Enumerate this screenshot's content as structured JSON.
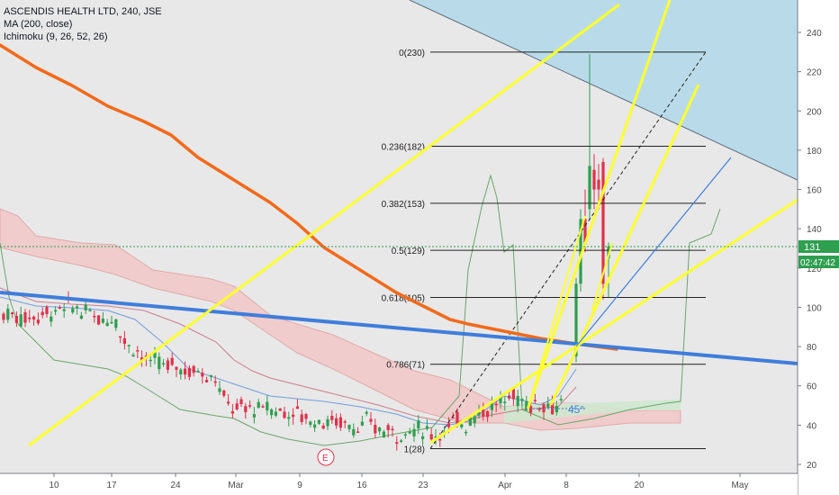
{
  "legend": {
    "title": "ASCENDIS HEALTH LTD, 240, JSE",
    "ma": "MA (200, close)",
    "ichimoku": "Ichimoku (9, 26, 52, 26)"
  },
  "price_axis": {
    "ticks": [
      "240",
      "220",
      "200",
      "180",
      "160",
      "140",
      "120",
      "100",
      "80",
      "60",
      "40",
      "20"
    ],
    "last_price_label": "131",
    "countdown_label": "02:47:42"
  },
  "time_axis": {
    "ticks": [
      "10",
      "17",
      "24",
      "Mar",
      "9",
      "16",
      "23",
      "Apr",
      "8",
      "20",
      "May"
    ]
  },
  "fib_levels": [
    {
      "label": "0(230)",
      "value": 230
    },
    {
      "label": "0.236(182)",
      "value": 182
    },
    {
      "label": "0.382(153)",
      "value": 153
    },
    {
      "label": "0.5(129)",
      "value": 129
    },
    {
      "label": "0.618(105)",
      "value": 105
    },
    {
      "label": "0.786(71)",
      "value": 71
    },
    {
      "label": "1(28)",
      "value": 28
    }
  ],
  "annotations": {
    "angle_label": "45°",
    "earnings_marker": "E"
  },
  "colors": {
    "background": "#e8e8e8",
    "up_candle": "#2e9e4f",
    "down_candle": "#e0314a",
    "ma_line": "#f26a1b",
    "trend_blue": "#3f7ddb",
    "yellow_lines": "#ffff2e",
    "cloud_red": "#f2c8c8",
    "cloud_green": "#cfe8cf",
    "blue_zone": "#b9dbe9",
    "axis_text": "#4a4a4a"
  },
  "chart_data": {
    "type": "candlestick",
    "symbol": "ASCENDIS HEALTH LTD",
    "interval": "240",
    "exchange": "JSE",
    "ylim": [
      18,
      258
    ],
    "grid": true,
    "last_price": 131,
    "ma_200": [
      {
        "date": "Feb 3",
        "value": 235
      },
      {
        "date": "Feb 10",
        "value": 218
      },
      {
        "date": "Feb 17",
        "value": 200
      },
      {
        "date": "Feb 24",
        "value": 180
      },
      {
        "date": "Mar 3",
        "value": 157
      },
      {
        "date": "Mar 9",
        "value": 130
      },
      {
        "date": "Mar 16",
        "value": 108
      },
      {
        "date": "Mar 23",
        "value": 91
      },
      {
        "date": "Apr 1",
        "value": 84
      },
      {
        "date": "Apr 8",
        "value": 80
      },
      {
        "date": "Apr 13",
        "value": 79
      }
    ],
    "ohlc_approx": [
      {
        "date": "Feb 3",
        "close": 104
      },
      {
        "date": "Feb 10",
        "close": 100
      },
      {
        "date": "Feb 17",
        "close": 92
      },
      {
        "date": "Feb 24",
        "close": 70
      },
      {
        "date": "Mar 3",
        "close": 60
      },
      {
        "date": "Mar 9",
        "close": 50
      },
      {
        "date": "Mar 16",
        "close": 43
      },
      {
        "date": "Mar 23",
        "close": 36
      },
      {
        "date": "Mar 30",
        "close": 54
      },
      {
        "date": "Apr 6",
        "close": 58
      },
      {
        "date": "Apr 9",
        "close": 170
      },
      {
        "date": "Apr 13",
        "close": 131
      }
    ]
  }
}
